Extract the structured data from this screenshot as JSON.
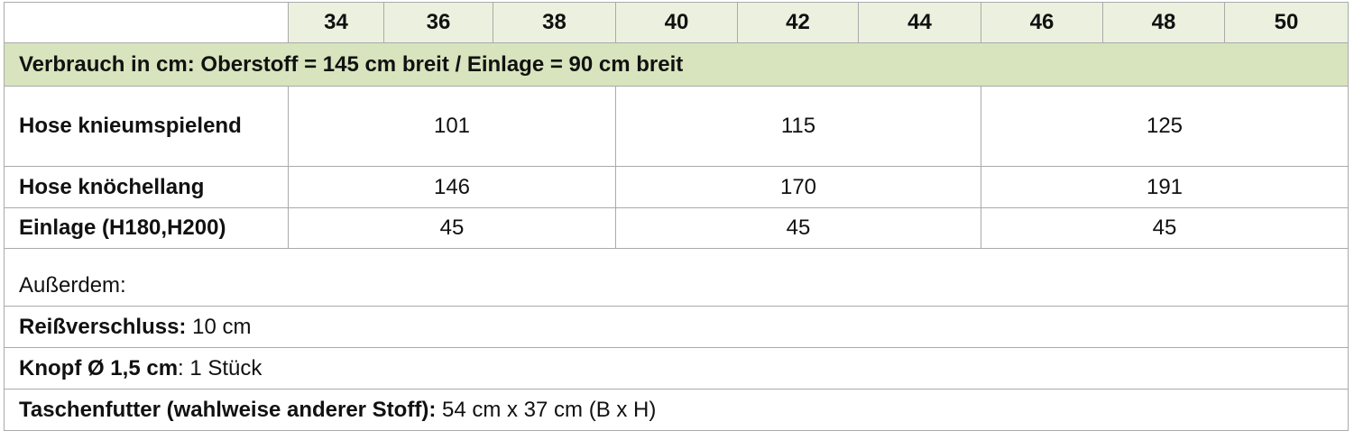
{
  "sizes": [
    "34",
    "36",
    "38",
    "40",
    "42",
    "44",
    "46",
    "48",
    "50"
  ],
  "band_title": "Verbrauch in cm: Oberstoff = 145 cm breit / Einlage = 90 cm breit",
  "rows": [
    {
      "label": "Hose knieumspielend",
      "values": [
        "101",
        "115",
        "125"
      ]
    },
    {
      "label": "Hose knöchellang",
      "values": [
        "146",
        "170",
        "191"
      ]
    },
    {
      "label": "Einlage (H180,H200)",
      "values": [
        "45",
        "45",
        "45"
      ]
    }
  ],
  "extras": {
    "heading": "Außerdem:",
    "items": [
      {
        "label": "Reißverschluss:",
        "value": " 10 cm"
      },
      {
        "label": "Knopf Ø 1,5 cm",
        "value": ": 1 Stück"
      },
      {
        "label": "Taschenfutter (wahlweise anderer Stoff):",
        "value": " 54 cm x 37 cm (B x H)"
      }
    ]
  },
  "colors": {
    "size_header": "#ebf1de",
    "band": "#d7e4bd",
    "border": "#aaaaaa"
  }
}
